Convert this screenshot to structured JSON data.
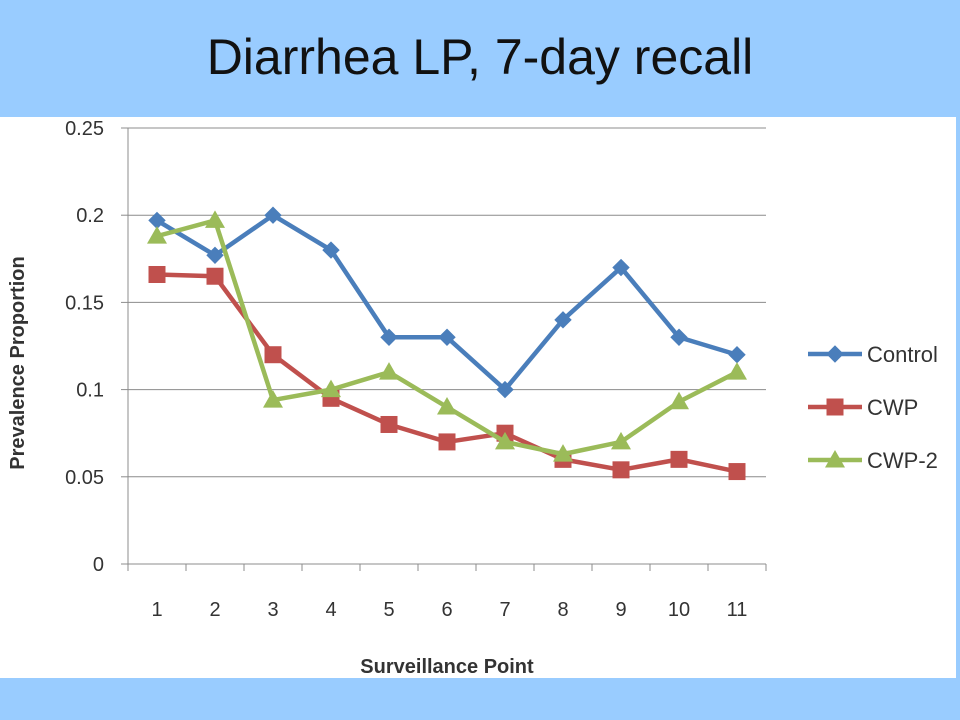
{
  "slide": {
    "title": "Diarrhea LP, 7-day recall"
  },
  "chart_data": {
    "type": "line",
    "title": "",
    "xlabel": "Surveillance Point",
    "ylabel": "Prevalence Proportion",
    "x": [
      1,
      2,
      3,
      4,
      5,
      6,
      7,
      8,
      9,
      10,
      11
    ],
    "ylim": [
      0,
      0.25
    ],
    "yticks": [
      "0",
      "0.05",
      "0.1",
      "0.15",
      "0.2",
      "0.25"
    ],
    "grid": true,
    "legend_position": "right",
    "series": [
      {
        "name": "Control",
        "marker": "diamond",
        "color": "#4a7ebb",
        "values": [
          0.197,
          0.177,
          0.2,
          0.18,
          0.13,
          0.13,
          0.1,
          0.14,
          0.17,
          0.13,
          0.12
        ]
      },
      {
        "name": "CWP",
        "marker": "square",
        "color": "#c0504d",
        "values": [
          0.166,
          0.165,
          0.12,
          0.095,
          0.08,
          0.07,
          0.075,
          0.06,
          0.054,
          0.06,
          0.053
        ]
      },
      {
        "name": "CWP-2",
        "marker": "triangle",
        "color": "#9bbb59",
        "values": [
          0.188,
          0.197,
          0.094,
          0.1,
          0.11,
          0.09,
          0.07,
          0.063,
          0.07,
          0.093,
          0.11
        ]
      }
    ]
  }
}
